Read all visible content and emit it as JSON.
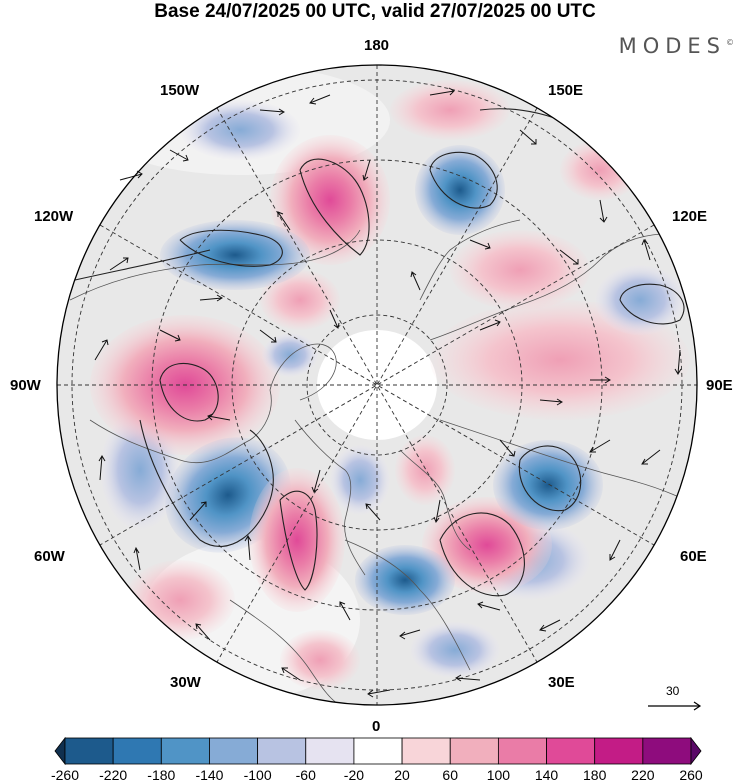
{
  "header": {
    "title": "Base 24/07/2025 00 UTC, valid 27/07/2025 00 UTC",
    "logo": "MODES"
  },
  "map": {
    "projection": "north polar stereographic",
    "longitude_labels": {
      "lon_180": "180",
      "lon_150w": "150W",
      "lon_150e": "150E",
      "lon_120w": "120W",
      "lon_120e": "120E",
      "lon_90w": "90W",
      "lon_90e": "90E",
      "lon_60w": "60W",
      "lon_60e": "60E",
      "lon_30w": "30W",
      "lon_30e": "30E",
      "lon_0": "0"
    },
    "reference_vector": {
      "value": "30"
    }
  },
  "colorbar": {
    "tick_labels": [
      "-260",
      "-220",
      "-180",
      "-140",
      "-100",
      "-60",
      "-20",
      "20",
      "60",
      "100",
      "140",
      "180",
      "220",
      "260"
    ],
    "colors": [
      "#10304f",
      "#1d5a8c",
      "#2f78b2",
      "#5094c6",
      "#86abd6",
      "#b8c3e2",
      "#e6e3f1",
      "#ffffff",
      "#f8d5d9",
      "#f1afbd",
      "#ea7ca7",
      "#e04a98",
      "#c31c86",
      "#8e0c7d",
      "#5a0867"
    ],
    "accent_colors": {
      "land_gray": "#e6e6e6",
      "ocean": "#ffffff",
      "text": "#000000"
    }
  }
}
